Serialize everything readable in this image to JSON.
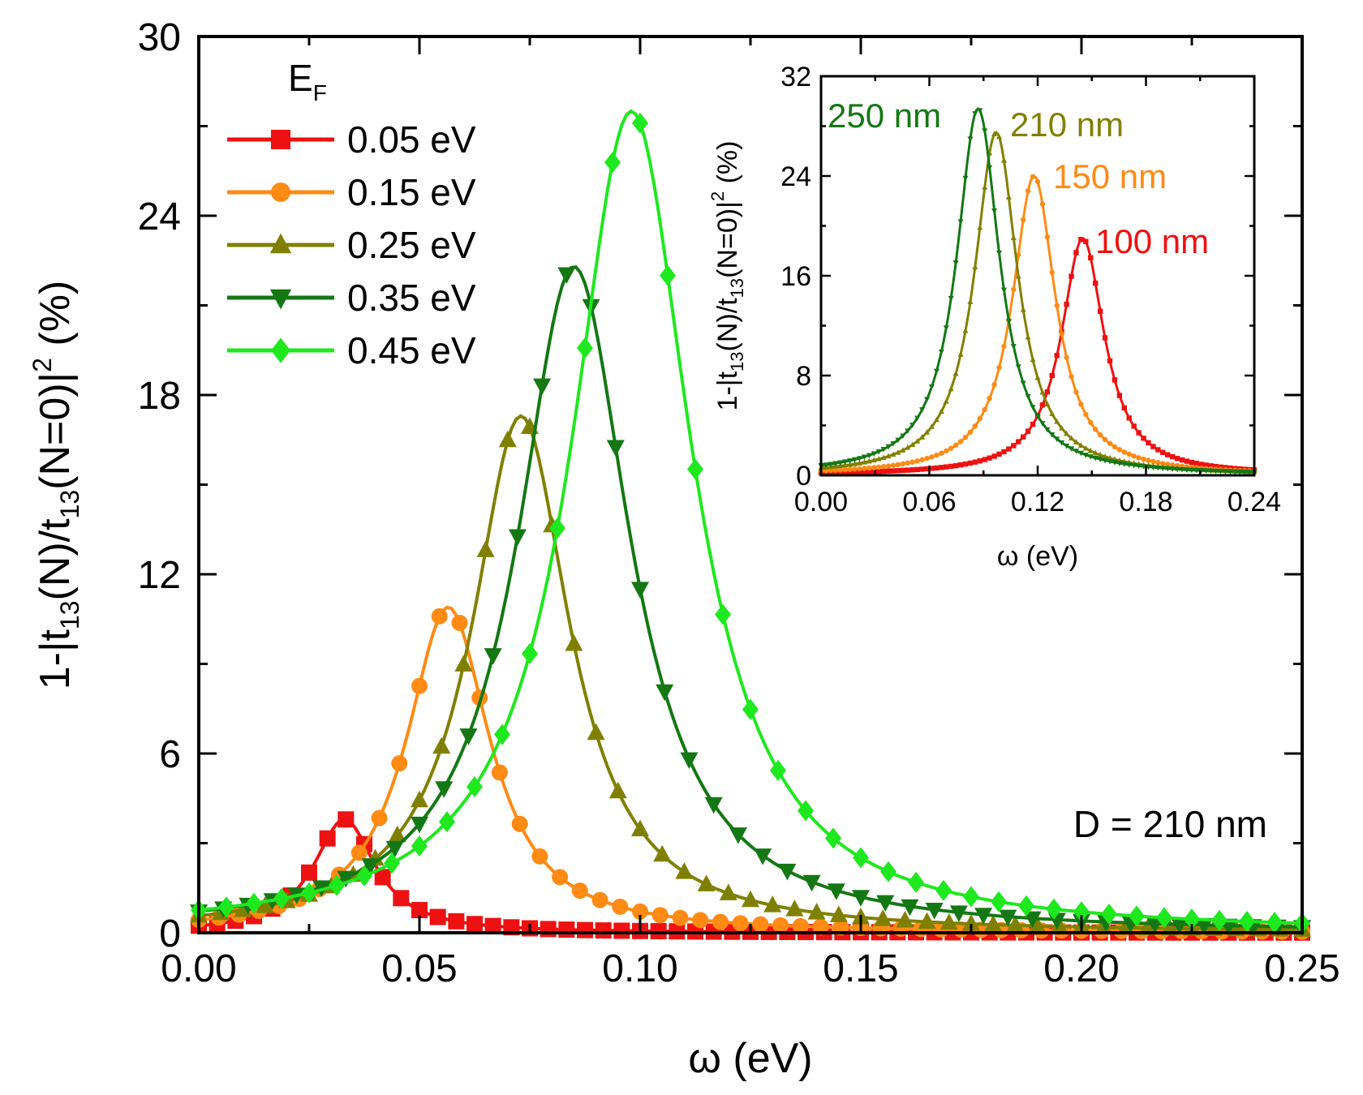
{
  "chart_data": [
    {
      "type": "line",
      "xlabel": "ω (eV)",
      "ylabel": "1-|t13(N)/t13(N=0)|2 (%)",
      "xlim": [
        0,
        0.25
      ],
      "ylim": [
        0,
        30
      ],
      "xticks": [
        "0.00",
        "0.05",
        "0.10",
        "0.15",
        "0.20",
        "0.25"
      ],
      "yticks": [
        "0",
        "6",
        "12",
        "18",
        "24",
        "30"
      ],
      "legend_title": "EF",
      "legend_position": "top-left",
      "annotation": "D = 210 nm",
      "series": [
        {
          "name": "0.05 eV",
          "color": "#ee1111",
          "marker": "square",
          "peak_x": 0.033,
          "peak_y": 3.8,
          "width": 0.0085,
          "n_markers": 60
        },
        {
          "name": "0.15 eV",
          "color": "#ff8a14",
          "marker": "circle",
          "peak_x": 0.0565,
          "peak_y": 10.9,
          "width": 0.0115,
          "n_markers": 55
        },
        {
          "name": "0.25 eV",
          "color": "#808000",
          "marker": "triangle-up",
          "peak_x": 0.073,
          "peak_y": 17.3,
          "width": 0.0135,
          "n_markers": 50
        },
        {
          "name": "0.35 eV",
          "color": "#137813",
          "marker": "triangle-down",
          "peak_x": 0.085,
          "peak_y": 22.3,
          "width": 0.0155,
          "n_markers": 45
        },
        {
          "name": "0.45 eV",
          "color": "#1ee81e",
          "marker": "diamond",
          "peak_x": 0.098,
          "peak_y": 27.5,
          "width": 0.0165,
          "n_markers": 40
        }
      ]
    },
    {
      "type": "line",
      "xlabel": "ω (eV)",
      "ylabel": "1-|t13(N)/t13(N=0)|2 (%)",
      "xlim": [
        0,
        0.24
      ],
      "ylim": [
        0,
        32
      ],
      "xticks": [
        "0.00",
        "0.06",
        "0.12",
        "0.18",
        "0.24"
      ],
      "yticks": [
        "0",
        "8",
        "16",
        "24",
        "32"
      ],
      "series": [
        {
          "name": "100 nm",
          "color": "#ee1111",
          "marker": "square",
          "peak_x": 0.145,
          "peak_y": 19.0,
          "width": 0.0145
        },
        {
          "name": "150 nm",
          "color": "#ff8a14",
          "marker": "circle",
          "peak_x": 0.118,
          "peak_y": 24.0,
          "width": 0.0145
        },
        {
          "name": "210 nm",
          "color": "#808000",
          "marker": "triangle-up",
          "peak_x": 0.097,
          "peak_y": 27.5,
          "width": 0.0145
        },
        {
          "name": "250 nm",
          "color": "#137813",
          "marker": "triangle-down",
          "peak_x": 0.087,
          "peak_y": 29.4,
          "width": 0.0145
        }
      ]
    }
  ]
}
